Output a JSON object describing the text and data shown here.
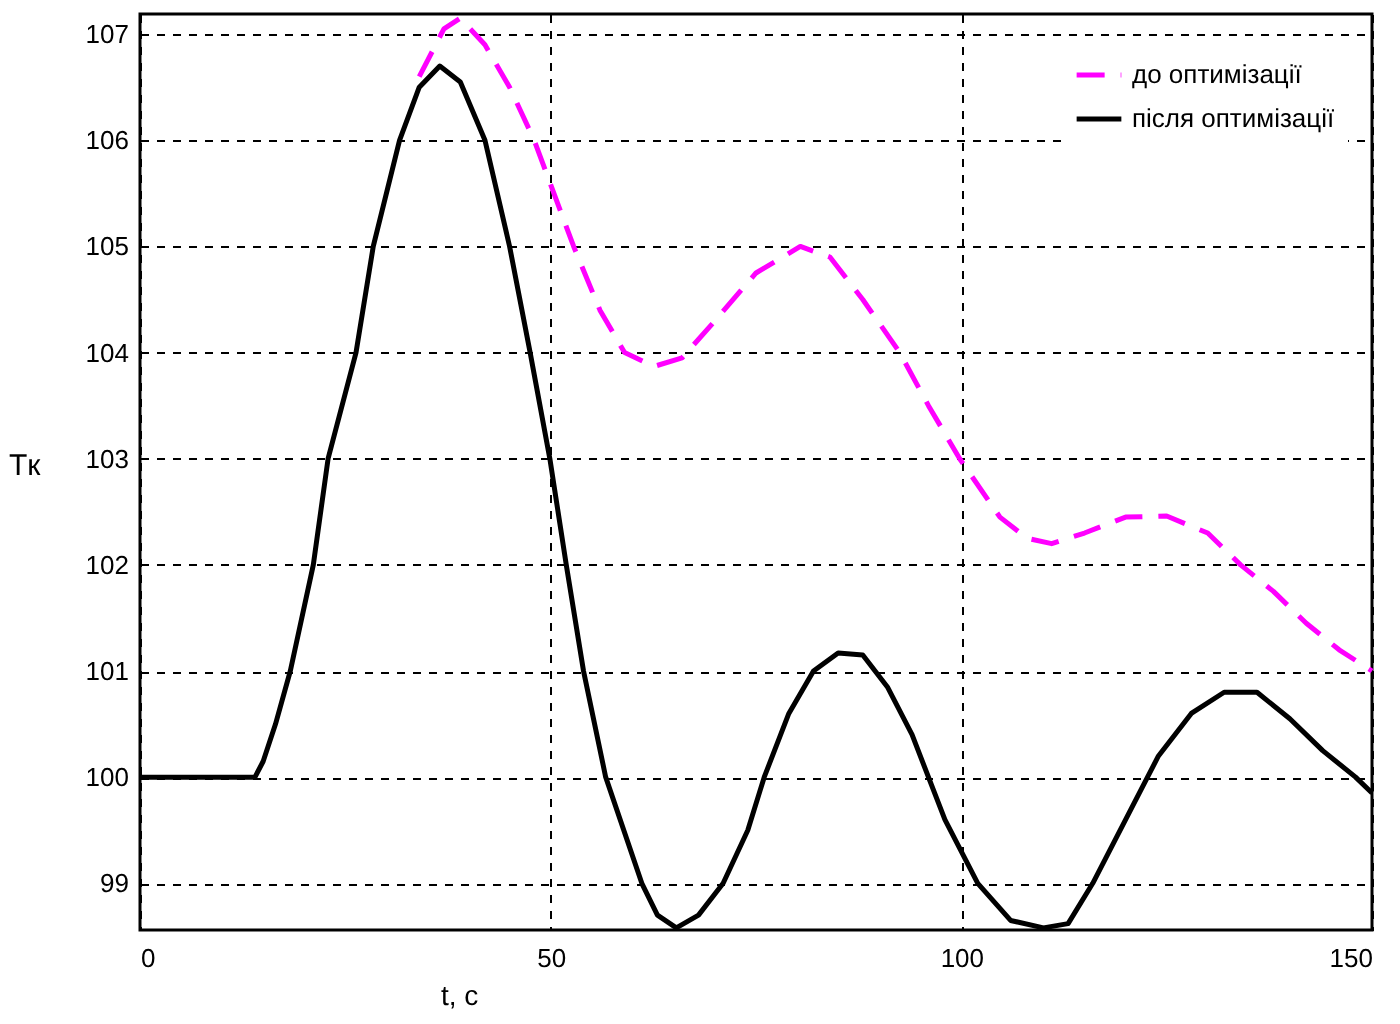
{
  "chart_data": {
    "type": "line",
    "xlabel": "t, c",
    "ylabel": "Tк",
    "xlim": [
      0,
      150
    ],
    "ylim": [
      98.56,
      107.19
    ],
    "xticks": [
      0,
      50,
      100,
      150
    ],
    "yticks": [
      99,
      100,
      101,
      102,
      103,
      104,
      105,
      106,
      107
    ],
    "grid": true,
    "legend": "top right",
    "series": [
      {
        "name": "до оптимізації",
        "color": "#ff00ff",
        "line_style": "dashed",
        "x": [
          34,
          37,
          39,
          42,
          45,
          48,
          52.8,
          56,
          59,
          62.6,
          66,
          70,
          75,
          80.4,
          84,
          88,
          92.5,
          96,
          99.8,
          104.7,
          108,
          111,
          115,
          120,
          125,
          130,
          134,
          138,
          142,
          146,
          150
        ],
        "values": [
          106.6,
          107.05,
          107.15,
          106.9,
          106.5,
          106,
          105,
          104.4,
          104,
          103.87,
          103.95,
          104.3,
          104.75,
          105.0,
          104.9,
          104.5,
          104,
          103.5,
          103,
          102.45,
          102.25,
          102.2,
          102.3,
          102.45,
          102.46,
          102.3,
          102,
          101.75,
          101.45,
          101.2,
          101.0
        ]
      },
      {
        "name": "після оптимізації",
        "color": "#000000",
        "line_style": "solid",
        "x": [
          0,
          14,
          15,
          16.5,
          18.3,
          21.1,
          22.9,
          26.3,
          28.4,
          31.6,
          34,
          36.5,
          39,
          42,
          45,
          47.5,
          49.9,
          51.9,
          54,
          56.7,
          61.1,
          63,
          65.3,
          68,
          71,
          74,
          76,
          79,
          82,
          85,
          88,
          91,
          94,
          98,
          102,
          106,
          110,
          113,
          116,
          120,
          124,
          128,
          132,
          136,
          140,
          144,
          148,
          150
        ],
        "values": [
          100,
          100,
          100.15,
          100.5,
          101,
          102,
          103,
          104,
          105,
          106,
          106.5,
          106.7,
          106.55,
          106,
          105,
          104,
          103,
          102,
          101,
          100,
          99,
          98.7,
          98.58,
          98.7,
          99,
          99.5,
          100,
          100.6,
          101,
          101.17,
          101.15,
          100.85,
          100.4,
          99.6,
          99,
          98.65,
          98.58,
          98.62,
          99,
          99.6,
          100.2,
          100.6,
          100.8,
          100.8,
          100.55,
          100.25,
          100,
          99.85
        ]
      }
    ]
  }
}
